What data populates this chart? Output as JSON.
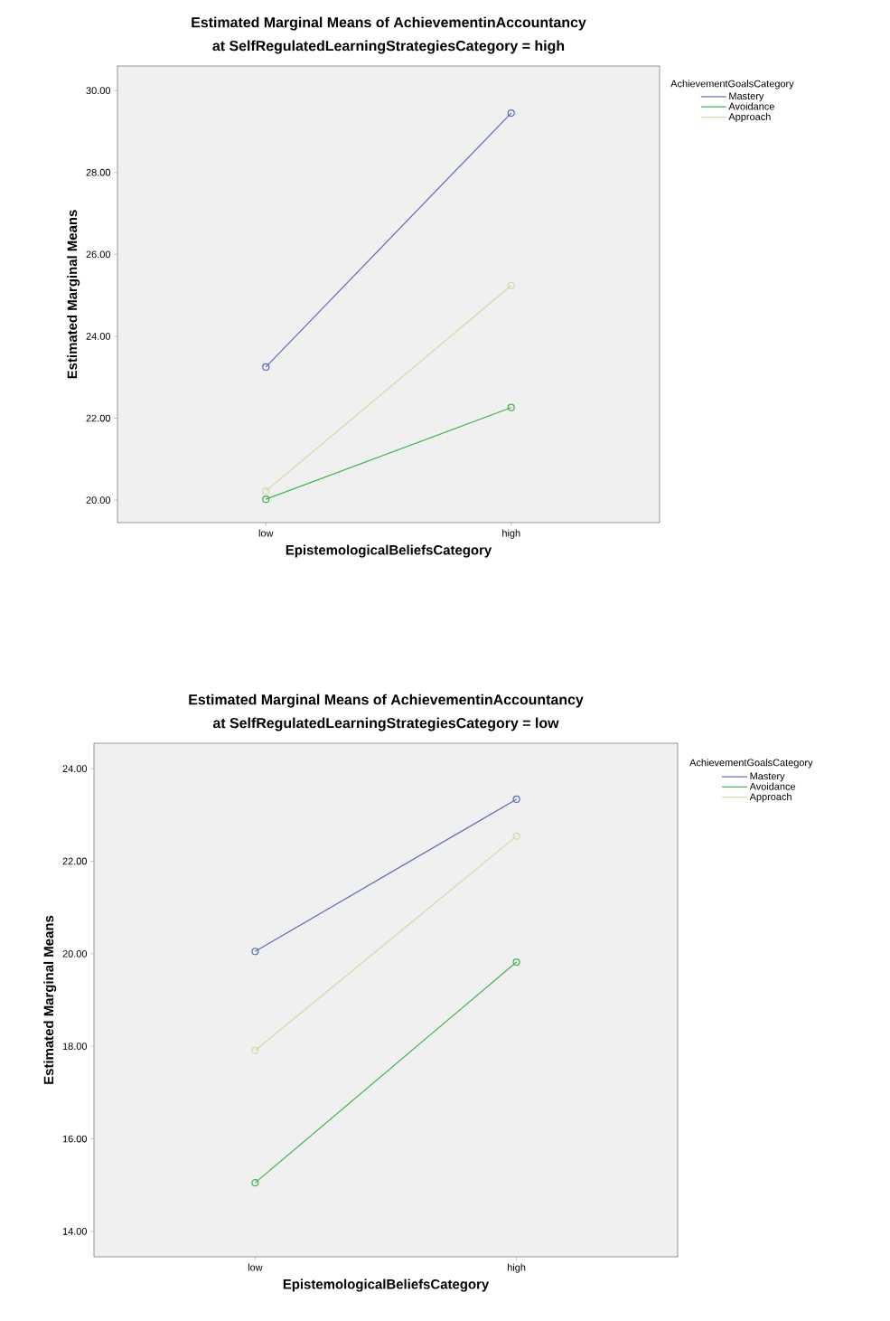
{
  "chart_data": [
    {
      "type": "line",
      "title": "Estimated Marginal Means of AchievementinAccountancy",
      "subtitle": "at SelfRegulatedLearningStrategiesCategory = high",
      "xlabel": "EpistemologicalBeliefsCategory",
      "ylabel": "Estimated Marginal Means",
      "legend_title": "AchievementGoalsCategory",
      "categories": [
        "low",
        "high"
      ],
      "series": [
        {
          "name": "Mastery",
          "color": "#5b6cb8",
          "values": [
            23.25,
            29.45
          ]
        },
        {
          "name": "Avoidance",
          "color": "#3fb44c",
          "values": [
            20.02,
            22.26
          ]
        },
        {
          "name": "Approach",
          "color": "#d6d9a6",
          "values": [
            20.22,
            25.24
          ]
        }
      ],
      "ylim": [
        19.45,
        30.6
      ],
      "yticks": [
        {
          "value": 20,
          "label": "20.00"
        },
        {
          "value": 22,
          "label": "22.00"
        },
        {
          "value": 24,
          "label": "24.00"
        },
        {
          "value": 26,
          "label": "26.00"
        },
        {
          "value": 28,
          "label": "28.00"
        },
        {
          "value": 30,
          "label": "30.00"
        }
      ],
      "legend": "top right",
      "marker": "circle",
      "grid": false
    },
    {
      "type": "line",
      "title": "Estimated Marginal Means of AchievementinAccountancy",
      "subtitle": "at SelfRegulatedLearningStrategiesCategory = low",
      "xlabel": "EpistemologicalBeliefsCategory",
      "ylabel": "Estimated Marginal Means",
      "legend_title": "AchievementGoalsCategory",
      "categories": [
        "low",
        "high"
      ],
      "series": [
        {
          "name": "Mastery",
          "color": "#5b6cb8",
          "values": [
            20.05,
            23.34
          ]
        },
        {
          "name": "Avoidance",
          "color": "#3fb44c",
          "values": [
            15.05,
            19.82
          ]
        },
        {
          "name": "Approach",
          "color": "#d6d9a6",
          "values": [
            17.91,
            22.54
          ]
        }
      ],
      "ylim": [
        13.45,
        24.55
      ],
      "yticks": [
        {
          "value": 14,
          "label": "14.00"
        },
        {
          "value": 16,
          "label": "16.00"
        },
        {
          "value": 18,
          "label": "18.00"
        },
        {
          "value": 20,
          "label": "20.00"
        },
        {
          "value": 22,
          "label": "22.00"
        },
        {
          "value": 24,
          "label": "24.00"
        }
      ],
      "legend": "top right",
      "marker": "circle",
      "grid": false
    }
  ]
}
